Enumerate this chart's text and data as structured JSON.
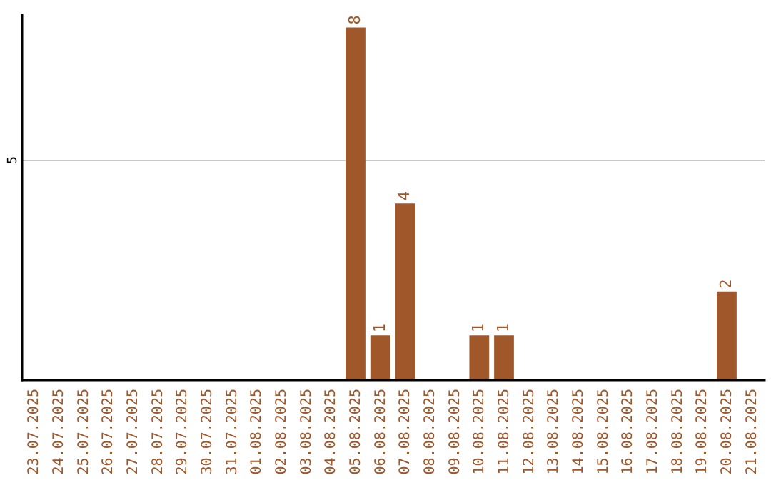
{
  "chart_data": {
    "type": "bar",
    "categories": [
      "23.07.2025",
      "24.07.2025",
      "25.07.2025",
      "26.07.2025",
      "27.07.2025",
      "28.07.2025",
      "29.07.2025",
      "30.07.2025",
      "31.07.2025",
      "01.08.2025",
      "02.08.2025",
      "03.08.2025",
      "04.08.2025",
      "05.08.2025",
      "06.08.2025",
      "07.08.2025",
      "08.08.2025",
      "09.08.2025",
      "10.08.2025",
      "11.08.2025",
      "12.08.2025",
      "13.08.2025",
      "14.08.2025",
      "15.08.2025",
      "16.08.2025",
      "17.08.2025",
      "18.08.2025",
      "19.08.2025",
      "20.08.2025",
      "21.08.2025"
    ],
    "values": [
      null,
      null,
      null,
      null,
      null,
      null,
      null,
      null,
      null,
      null,
      null,
      null,
      null,
      8,
      1,
      4,
      null,
      null,
      1,
      1,
      null,
      null,
      null,
      null,
      null,
      null,
      null,
      null,
      2,
      null
    ],
    "color": "#a0572a",
    "ylim": [
      0,
      8.3
    ],
    "yticks": [
      5
    ],
    "grid": "y",
    "data_labels": true
  }
}
